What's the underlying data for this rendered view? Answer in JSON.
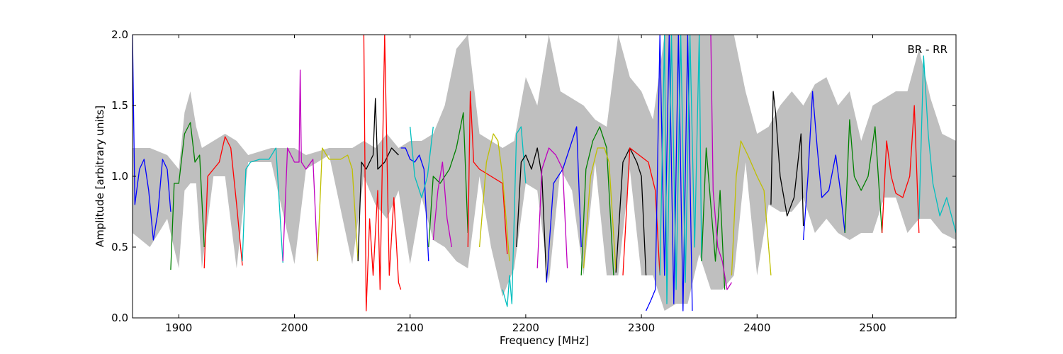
{
  "chart_data": {
    "type": "line",
    "title": "",
    "xlabel": "Frequency [MHz]",
    "ylabel": "Amplitude [arbitrary units]",
    "xlim": [
      1860,
      2572
    ],
    "ylim": [
      0.0,
      2.0
    ],
    "xticks": [
      1900,
      2000,
      2100,
      2200,
      2300,
      2400,
      2500
    ],
    "xtick_labels": [
      "1900",
      "2000",
      "2100",
      "2200",
      "2300",
      "2400",
      "2500"
    ],
    "yticks": [
      0.0,
      0.5,
      1.0,
      1.5,
      2.0
    ],
    "ytick_labels": [
      "0.0",
      "0.5",
      "1.0",
      "1.5",
      "2.0"
    ],
    "grid": false,
    "legend": "none",
    "annotation": "BR - RR",
    "background_band": {
      "color": "#bfbfbf",
      "x": [
        1860,
        1875,
        1890,
        1900,
        1905,
        1910,
        1915,
        1920,
        1930,
        1940,
        1950,
        1960,
        1980,
        2000,
        2010,
        2030,
        2050,
        2060,
        2070,
        2080,
        2090,
        2100,
        2110,
        2120,
        2130,
        2140,
        2150,
        2160,
        2170,
        2180,
        2190,
        2200,
        2210,
        2220,
        2230,
        2240,
        2250,
        2260,
        2270,
        2280,
        2290,
        2300,
        2310,
        2320,
        2330,
        2340,
        2350,
        2360,
        2370,
        2380,
        2390,
        2400,
        2410,
        2420,
        2430,
        2440,
        2450,
        2460,
        2470,
        2480,
        2490,
        2500,
        2510,
        2520,
        2530,
        2540,
        2550,
        2560,
        2572
      ],
      "upper": [
        1.2,
        1.2,
        1.15,
        1.05,
        1.45,
        1.6,
        1.35,
        1.2,
        1.25,
        1.3,
        1.25,
        1.15,
        1.2,
        1.2,
        1.15,
        1.2,
        1.2,
        1.25,
        1.2,
        1.3,
        1.2,
        1.25,
        1.25,
        1.3,
        1.5,
        1.9,
        2.0,
        1.3,
        1.25,
        1.2,
        1.25,
        1.7,
        1.5,
        2.0,
        1.6,
        1.55,
        1.5,
        1.4,
        1.35,
        2.0,
        1.7,
        1.6,
        1.4,
        2.0,
        2.0,
        2.0,
        2.0,
        2.0,
        2.0,
        2.0,
        1.6,
        1.3,
        1.35,
        1.5,
        1.6,
        1.5,
        1.65,
        1.7,
        1.5,
        1.6,
        1.25,
        1.5,
        1.55,
        1.6,
        1.6,
        1.9,
        1.55,
        1.3,
        1.25
      ],
      "lower": [
        0.6,
        0.5,
        0.7,
        0.35,
        0.9,
        0.95,
        0.95,
        0.35,
        1.0,
        1.0,
        0.35,
        1.1,
        1.1,
        0.38,
        1.05,
        1.15,
        0.38,
        1.0,
        0.8,
        0.7,
        0.9,
        0.38,
        0.85,
        0.55,
        0.5,
        0.4,
        0.35,
        1.0,
        0.5,
        0.15,
        0.35,
        0.95,
        0.9,
        0.25,
        1.05,
        0.9,
        0.3,
        1.1,
        0.3,
        0.3,
        1.05,
        0.3,
        0.3,
        0.05,
        0.1,
        0.1,
        0.45,
        0.2,
        0.2,
        0.3,
        1.1,
        0.3,
        0.8,
        0.75,
        0.75,
        0.85,
        0.6,
        0.7,
        0.6,
        0.55,
        0.6,
        0.6,
        0.85,
        0.85,
        0.6,
        0.7,
        0.7,
        0.6,
        0.55
      ]
    },
    "series": [
      {
        "color": "#0000ff",
        "x": [
          1860,
          1862,
          1866,
          1870,
          1874,
          1878,
          1882,
          1886,
          1890,
          1893
        ],
        "y": [
          2.0,
          0.8,
          1.05,
          1.12,
          0.9,
          0.55,
          0.75,
          1.12,
          1.05,
          0.75
        ]
      },
      {
        "color": "#008000",
        "x": [
          1893,
          1896,
          1900,
          1905,
          1910,
          1914,
          1918,
          1922
        ],
        "y": [
          0.34,
          0.95,
          0.95,
          1.3,
          1.38,
          1.1,
          1.15,
          0.5
        ]
      },
      {
        "color": "#ff0000",
        "x": [
          1922,
          1925,
          1930,
          1935,
          1940,
          1945,
          1950,
          1955
        ],
        "y": [
          0.35,
          1.0,
          1.05,
          1.1,
          1.28,
          1.2,
          0.8,
          0.37
        ]
      },
      {
        "color": "#00bfbf",
        "x": [
          1955,
          1958,
          1962,
          1970,
          1978,
          1984,
          1990
        ],
        "y": [
          0.4,
          1.05,
          1.1,
          1.12,
          1.12,
          1.2,
          0.39
        ]
      },
      {
        "color": "#bf00bf",
        "x": [
          1990,
          1994,
          2000,
          2004,
          2005,
          2006,
          2010,
          2016,
          2020
        ],
        "y": [
          0.4,
          1.2,
          1.1,
          1.1,
          1.75,
          1.1,
          1.05,
          1.12,
          0.4
        ]
      },
      {
        "color": "#bfbf00",
        "x": [
          2020,
          2024,
          2030,
          2040,
          2046,
          2050,
          2055
        ],
        "y": [
          0.4,
          1.2,
          1.12,
          1.12,
          1.15,
          1.05,
          0.4
        ]
      },
      {
        "color": "#000000",
        "x": [
          2055,
          2058,
          2062,
          2068,
          2070,
          2072,
          2078,
          2084,
          2090
        ],
        "y": [
          0.4,
          1.1,
          1.05,
          1.15,
          1.55,
          1.05,
          1.1,
          1.2,
          1.15
        ]
      },
      {
        "color": "#ff0000",
        "x": [
          2060,
          2062,
          2065,
          2068,
          2072,
          2074,
          2078,
          2082,
          2086,
          2090,
          2092
        ],
        "y": [
          2.0,
          0.05,
          0.7,
          0.3,
          0.9,
          0.2,
          2.0,
          0.3,
          0.85,
          0.25,
          0.2
        ]
      },
      {
        "color": "#0000ff",
        "x": [
          2092,
          2096,
          2100,
          2104,
          2108,
          2112,
          2116
        ],
        "y": [
          1.2,
          1.2,
          1.12,
          1.1,
          1.15,
          1.05,
          0.4
        ]
      },
      {
        "color": "#00bfbf",
        "x": [
          2100,
          2104,
          2110,
          2115,
          2120
        ],
        "y": [
          1.35,
          1.0,
          0.85,
          1.0,
          1.35
        ]
      },
      {
        "color": "#008000",
        "x": [
          2116,
          2120,
          2126,
          2134,
          2140,
          2146,
          2150
        ],
        "y": [
          0.5,
          1.0,
          0.95,
          1.05,
          1.2,
          1.45,
          0.6
        ]
      },
      {
        "color": "#bf00bf",
        "x": [
          2120,
          2124,
          2128,
          2132,
          2136
        ],
        "y": [
          0.55,
          0.9,
          1.1,
          0.7,
          0.5
        ]
      },
      {
        "color": "#ff0000",
        "x": [
          2150,
          2152,
          2155,
          2160,
          2170,
          2180,
          2184
        ],
        "y": [
          0.5,
          1.6,
          1.1,
          1.05,
          1.0,
          0.95,
          0.45
        ]
      },
      {
        "color": "#bfbf00",
        "x": [
          2160,
          2166,
          2172,
          2176,
          2180,
          2186
        ],
        "y": [
          0.5,
          1.1,
          1.3,
          1.25,
          1.0,
          0.4
        ]
      },
      {
        "color": "#00bfbf",
        "x": [
          2180,
          2184,
          2186,
          2188,
          2192,
          2196,
          2200
        ],
        "y": [
          0.2,
          0.08,
          0.3,
          0.1,
          1.3,
          1.35,
          0.95
        ]
      },
      {
        "color": "#000000",
        "x": [
          2192,
          2196,
          2200,
          2205,
          2210,
          2214,
          2218
        ],
        "y": [
          0.5,
          1.1,
          1.15,
          1.05,
          1.2,
          1.0,
          0.25
        ]
      },
      {
        "color": "#0000ff",
        "x": [
          2218,
          2224,
          2232,
          2240,
          2244,
          2248
        ],
        "y": [
          0.25,
          0.95,
          1.05,
          1.25,
          1.35,
          0.5
        ]
      },
      {
        "color": "#bf00bf",
        "x": [
          2210,
          2214,
          2220,
          2226,
          2232,
          2236
        ],
        "y": [
          0.35,
          1.05,
          1.2,
          1.15,
          1.05,
          0.35
        ]
      },
      {
        "color": "#008000",
        "x": [
          2248,
          2252,
          2258,
          2264,
          2270,
          2276
        ],
        "y": [
          0.3,
          1.05,
          1.25,
          1.35,
          1.2,
          0.3
        ]
      },
      {
        "color": "#bfbf00",
        "x": [
          2250,
          2256,
          2262,
          2268,
          2272,
          2278
        ],
        "y": [
          0.35,
          1.0,
          1.2,
          1.2,
          1.1,
          0.32
        ]
      },
      {
        "color": "#000000",
        "x": [
          2278,
          2284,
          2290,
          2296,
          2300,
          2304
        ],
        "y": [
          0.32,
          1.1,
          1.2,
          1.1,
          1.0,
          0.3
        ]
      },
      {
        "color": "#ff0000",
        "x": [
          2284,
          2290,
          2298,
          2306,
          2312,
          2316
        ],
        "y": [
          0.3,
          1.2,
          1.15,
          1.1,
          0.9,
          0.3
        ]
      },
      {
        "color": "#0000ff",
        "x": [
          2304,
          2308,
          2312,
          2316,
          2320,
          2324,
          2328,
          2332,
          2336,
          2340,
          2344
        ],
        "y": [
          0.05,
          0.12,
          0.2,
          2.0,
          0.3,
          2.0,
          0.1,
          2.0,
          0.05,
          2.0,
          0.05
        ]
      },
      {
        "color": "#00bfbf",
        "x": [
          2316,
          2320,
          2322,
          2326,
          2330,
          2334,
          2338,
          2342,
          2346,
          2350,
          2352
        ],
        "y": [
          0.3,
          2.0,
          0.1,
          2.0,
          0.2,
          2.0,
          0.25,
          2.0,
          0.5,
          2.0,
          0.4
        ]
      },
      {
        "color": "#008000",
        "x": [
          2352,
          2356,
          2360,
          2364,
          2368,
          2372
        ],
        "y": [
          0.4,
          1.2,
          0.8,
          0.4,
          0.9,
          0.2
        ]
      },
      {
        "color": "#bf00bf",
        "x": [
          2360,
          2362,
          2366,
          2370,
          2374,
          2378
        ],
        "y": [
          2.0,
          0.9,
          0.5,
          0.4,
          0.2,
          0.25
        ]
      },
      {
        "color": "#bfbf00",
        "x": [
          2378,
          2382,
          2386,
          2392,
          2400,
          2406,
          2412
        ],
        "y": [
          0.3,
          1.0,
          1.25,
          1.15,
          1.0,
          0.9,
          0.3
        ]
      },
      {
        "color": "#000000",
        "x": [
          2412,
          2414,
          2416,
          2420,
          2426,
          2432,
          2438,
          2440
        ],
        "y": [
          0.8,
          1.6,
          1.45,
          1.0,
          0.72,
          0.85,
          1.3,
          0.65
        ]
      },
      {
        "color": "#0000ff",
        "x": [
          2440,
          2444,
          2448,
          2452,
          2456,
          2462,
          2468,
          2472,
          2476
        ],
        "y": [
          0.55,
          1.0,
          1.6,
          1.2,
          0.85,
          0.9,
          1.15,
          0.9,
          0.6
        ]
      },
      {
        "color": "#008000",
        "x": [
          2476,
          2480,
          2484,
          2490,
          2496,
          2502,
          2508
        ],
        "y": [
          0.6,
          1.4,
          1.0,
          0.9,
          1.0,
          1.35,
          0.6
        ]
      },
      {
        "color": "#ff0000",
        "x": [
          2508,
          2512,
          2516,
          2520,
          2526,
          2532,
          2536,
          2540
        ],
        "y": [
          0.6,
          1.25,
          1.0,
          0.88,
          0.85,
          1.0,
          1.5,
          0.6
        ]
      },
      {
        "color": "#00bfbf",
        "x": [
          2540,
          2544,
          2548,
          2552,
          2558,
          2564,
          2572
        ],
        "y": [
          0.7,
          1.85,
          1.3,
          0.95,
          0.72,
          0.85,
          0.6
        ]
      }
    ]
  }
}
